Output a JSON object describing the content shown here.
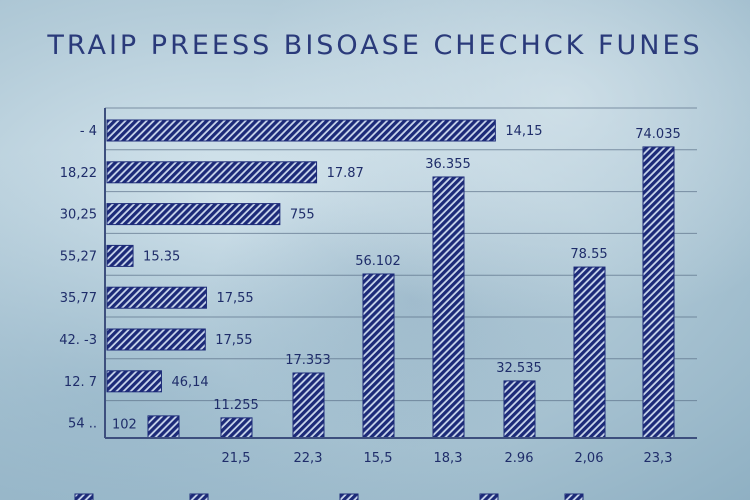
{
  "colors": {
    "bar": "#1c2a78",
    "bar_light": "#c9d6ec",
    "axis": "#3d4f7e",
    "grid": "#5b7088",
    "text": "#1f2d6a"
  },
  "chart_data": {
    "type": "bar",
    "title": "TRAIP PREESS BISOASE CHECHCK FUNES",
    "grid": true,
    "legend": "bottom",
    "scale_note": "bar lengths as percent of plot extent",
    "horizontal": {
      "categories": [
        "- 4",
        "18,22",
        "30,25",
        "55,27",
        "35,77",
        "42. -3",
        "12. 7",
        "54 .."
      ],
      "values": [
        65.6,
        35.4,
        29.2,
        4.4,
        16.8,
        16.6,
        9.2,
        null
      ],
      "data_labels": [
        "14,15",
        "17.87",
        "755",
        "15.35",
        "17,55",
        "17,55",
        "46,14",
        "102"
      ]
    },
    "vertical": {
      "x_tick_labels": [
        "",
        "21,5",
        "22,3",
        "15,5",
        "18,3",
        "2.96",
        "2,06",
        "23,3"
      ],
      "values": [
        6.7,
        6.1,
        19.7,
        49.7,
        79.1,
        17.3,
        51.8,
        88.2
      ],
      "data_labels": [
        "",
        "11.255",
        "17.353",
        "56.102",
        "36.355",
        "32.535",
        "78.55",
        "74.035"
      ]
    }
  }
}
